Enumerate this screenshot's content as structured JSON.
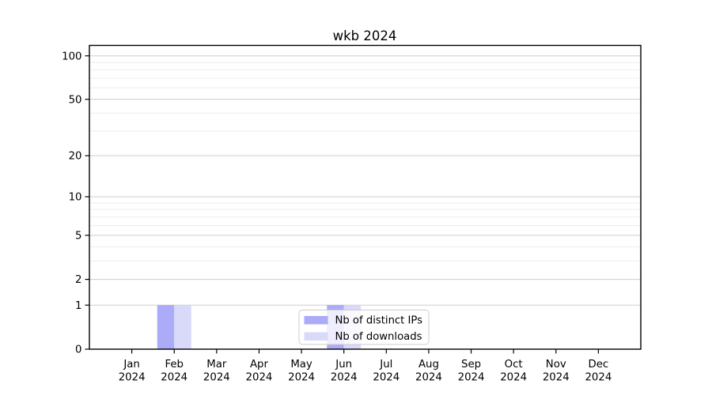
{
  "chart_data": {
    "type": "bar",
    "title": "wkb 2024",
    "xlabel": "",
    "ylabel": "",
    "categories": [
      "Jan",
      "Feb",
      "Mar",
      "Apr",
      "May",
      "Jun",
      "Jul",
      "Aug",
      "Sep",
      "Oct",
      "Nov",
      "Dec"
    ],
    "tick_year": "2024",
    "series": [
      {
        "name": "Nb of distinct IPs",
        "color": "#ababf8",
        "values": [
          0,
          1,
          0,
          0,
          0,
          1,
          0,
          0,
          0,
          0,
          0,
          0
        ]
      },
      {
        "name": "Nb of downloads",
        "color": "#d9d9f9",
        "values": [
          0,
          1,
          0,
          0,
          0,
          1,
          0,
          0,
          0,
          0,
          0,
          0
        ]
      }
    ],
    "yscale": "log1p",
    "ylim": [
      0,
      118
    ],
    "yticks": [
      0,
      1,
      2,
      5,
      10,
      20,
      50,
      100
    ],
    "minor_gridlines": [
      3,
      4,
      6,
      7,
      8,
      9,
      30,
      40,
      60,
      70,
      80,
      90
    ],
    "grid": true,
    "legend": {
      "position": "lower-center-inside",
      "entries": [
        "Nb of distinct IPs",
        "Nb of downloads"
      ]
    },
    "colors": {
      "major_grid": "#cdcdcd",
      "minor_grid": "#ededed",
      "spine": "#000000",
      "legend_border": "#cccccc"
    }
  }
}
